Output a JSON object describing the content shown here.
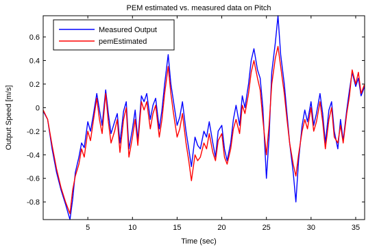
{
  "chart_data": {
    "type": "line",
    "title": "PEM estimated vs. measured data on Pitch",
    "xlabel": "Time (sec)",
    "ylabel": "Output Speed [m/s]",
    "xlim": [
      0,
      36
    ],
    "ylim": [
      -0.95,
      0.78
    ],
    "xticks": [
      5,
      10,
      15,
      20,
      25,
      30,
      35
    ],
    "yticks": [
      -0.8,
      -0.6,
      -0.4,
      -0.2,
      0,
      0.2,
      0.4,
      0.6
    ],
    "ytick_labels": [
      "-0.8",
      "-0.6",
      "-0.4",
      "-0.2",
      "0",
      "0.2",
      "0.4",
      "0.6"
    ],
    "grid": false,
    "legend_position": "top-left",
    "series": [
      {
        "name": "Measured Output",
        "color": "#0000ff",
        "x": [
          0,
          0.5,
          1,
          1.5,
          2,
          2.5,
          3,
          3.3,
          3.6,
          4,
          4.3,
          4.6,
          5,
          5.3,
          5.6,
          6,
          6.3,
          6.6,
          7,
          7.3,
          7.6,
          8,
          8.3,
          8.6,
          9,
          9.3,
          9.6,
          10,
          10.3,
          10.6,
          11,
          11.3,
          11.6,
          12,
          12.3,
          12.6,
          13,
          13.3,
          13.6,
          14,
          14.3,
          14.6,
          15,
          15.3,
          15.6,
          16,
          16.3,
          16.6,
          17,
          17.3,
          17.6,
          18,
          18.3,
          18.6,
          19,
          19.3,
          19.6,
          20,
          20.3,
          20.6,
          21,
          21.3,
          21.6,
          22,
          22.3,
          22.6,
          23,
          23.3,
          23.6,
          24,
          24.3,
          24.6,
          25,
          25.3,
          25.6,
          26,
          26.3,
          26.6,
          27,
          27.3,
          27.6,
          28,
          28.3,
          28.6,
          29,
          29.3,
          29.6,
          30,
          30.3,
          30.6,
          31,
          31.3,
          31.6,
          32,
          32.3,
          32.6,
          33,
          33.3,
          33.6,
          34,
          34.3,
          34.6,
          35,
          35.3,
          35.6,
          36
        ],
        "y": [
          -0.03,
          -0.1,
          -0.35,
          -0.55,
          -0.7,
          -0.82,
          -0.95,
          -0.78,
          -0.55,
          -0.42,
          -0.3,
          -0.34,
          -0.12,
          -0.2,
          -0.07,
          0.12,
          -0.02,
          -0.15,
          0.15,
          -0.05,
          -0.22,
          -0.12,
          -0.05,
          -0.3,
          -0.03,
          0.05,
          -0.35,
          -0.18,
          -0.02,
          -0.28,
          0.1,
          0.05,
          0.12,
          -0.1,
          0.02,
          0.08,
          -0.18,
          -0.02,
          0.2,
          0.45,
          0.2,
          0.05,
          -0.15,
          -0.08,
          0.05,
          -0.2,
          -0.35,
          -0.5,
          -0.25,
          -0.32,
          -0.35,
          -0.2,
          -0.25,
          -0.12,
          -0.3,
          -0.42,
          -0.2,
          -0.15,
          -0.35,
          -0.45,
          -0.3,
          -0.1,
          0.02,
          -0.15,
          0.1,
          0.0,
          0.2,
          0.4,
          0.5,
          0.32,
          0.25,
          0.0,
          -0.6,
          -0.25,
          0.3,
          0.55,
          0.78,
          0.45,
          0.2,
          -0.05,
          -0.3,
          -0.55,
          -0.8,
          -0.45,
          -0.15,
          -0.02,
          -0.12,
          0.05,
          -0.15,
          -0.05,
          0.12,
          -0.05,
          -0.3,
          -0.02,
          0.05,
          -0.2,
          -0.35,
          -0.1,
          -0.28,
          -0.02,
          0.15,
          0.3,
          0.18,
          0.25,
          0.1,
          0.18
        ]
      },
      {
        "name": "pemEstimated",
        "color": "#ff0000",
        "x": [
          0,
          0.5,
          1,
          1.5,
          2,
          2.5,
          3,
          3.3,
          3.6,
          4,
          4.3,
          4.6,
          5,
          5.3,
          5.6,
          6,
          6.3,
          6.6,
          7,
          7.3,
          7.6,
          8,
          8.3,
          8.6,
          9,
          9.3,
          9.6,
          10,
          10.3,
          10.6,
          11,
          11.3,
          11.6,
          12,
          12.3,
          12.6,
          13,
          13.3,
          13.6,
          14,
          14.3,
          14.6,
          15,
          15.3,
          15.6,
          16,
          16.3,
          16.6,
          17,
          17.3,
          17.6,
          18,
          18.3,
          18.6,
          19,
          19.3,
          19.6,
          20,
          20.3,
          20.6,
          21,
          21.3,
          21.6,
          22,
          22.3,
          22.6,
          23,
          23.3,
          23.6,
          24,
          24.3,
          24.6,
          25,
          25.3,
          25.6,
          26,
          26.3,
          26.6,
          27,
          27.3,
          27.6,
          28,
          28.3,
          28.6,
          29,
          29.3,
          29.6,
          30,
          30.3,
          30.6,
          31,
          31.3,
          31.6,
          32,
          32.3,
          32.6,
          33,
          33.3,
          33.6,
          34,
          34.3,
          34.6,
          35,
          35.3,
          35.6,
          36
        ],
        "y": [
          -0.02,
          -0.1,
          -0.32,
          -0.52,
          -0.68,
          -0.8,
          -0.9,
          -0.7,
          -0.58,
          -0.48,
          -0.35,
          -0.42,
          -0.2,
          -0.28,
          -0.12,
          0.08,
          -0.1,
          -0.22,
          0.12,
          -0.12,
          -0.3,
          -0.2,
          -0.1,
          -0.38,
          -0.1,
          0.0,
          -0.42,
          -0.25,
          -0.1,
          -0.32,
          0.05,
          -0.02,
          0.05,
          -0.18,
          -0.05,
          0.02,
          -0.25,
          -0.1,
          0.12,
          0.35,
          0.12,
          -0.05,
          -0.25,
          -0.18,
          -0.05,
          -0.3,
          -0.45,
          -0.62,
          -0.4,
          -0.45,
          -0.42,
          -0.3,
          -0.35,
          -0.22,
          -0.38,
          -0.45,
          -0.28,
          -0.22,
          -0.42,
          -0.48,
          -0.35,
          -0.18,
          -0.1,
          -0.22,
          0.02,
          -0.05,
          0.12,
          0.3,
          0.4,
          0.25,
          0.15,
          -0.1,
          -0.4,
          -0.15,
          0.2,
          0.42,
          0.52,
          0.35,
          0.12,
          -0.1,
          -0.3,
          -0.48,
          -0.58,
          -0.4,
          -0.2,
          -0.1,
          -0.18,
          0.0,
          -0.2,
          -0.12,
          0.05,
          -0.12,
          -0.35,
          -0.1,
          0.0,
          -0.25,
          -0.3,
          -0.15,
          -0.3,
          -0.05,
          0.1,
          0.32,
          0.2,
          0.3,
          0.12,
          0.2
        ]
      }
    ]
  }
}
